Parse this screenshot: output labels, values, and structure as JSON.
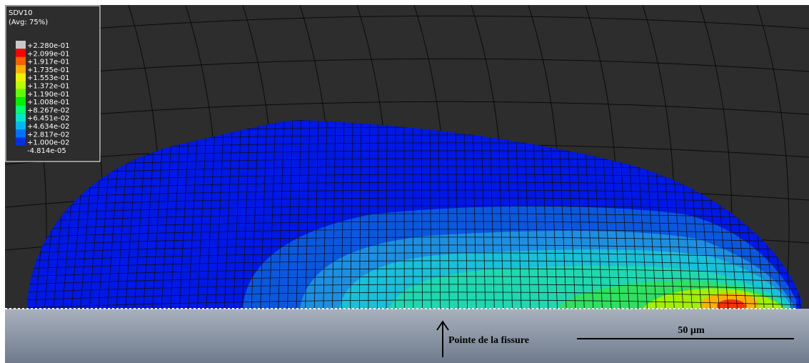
{
  "legend": {
    "title": "SDV10",
    "subtitle": "(Avg: 75%)",
    "labels": [
      "+2.280e-01",
      "+2.099e-01",
      "+1.917e-01",
      "+1.735e-01",
      "+1.553e-01",
      "+1.372e-01",
      "+1.190e-01",
      "+1.008e-01",
      "+8.267e-02",
      "+6.451e-02",
      "+4.634e-02",
      "+2.817e-02",
      "+1.000e-02",
      "-4.814e-05"
    ],
    "colors": [
      "#c8c8c8",
      "#ff0000",
      "#ff6000",
      "#ffb000",
      "#f0f000",
      "#b8ff00",
      "#60ff00",
      "#00f000",
      "#00ff70",
      "#00e8c8",
      "#00b8f0",
      "#0070ff",
      "#0030e0"
    ]
  },
  "annotation": "Pointe de la fissure",
  "scale_bar": "50 µm"
}
